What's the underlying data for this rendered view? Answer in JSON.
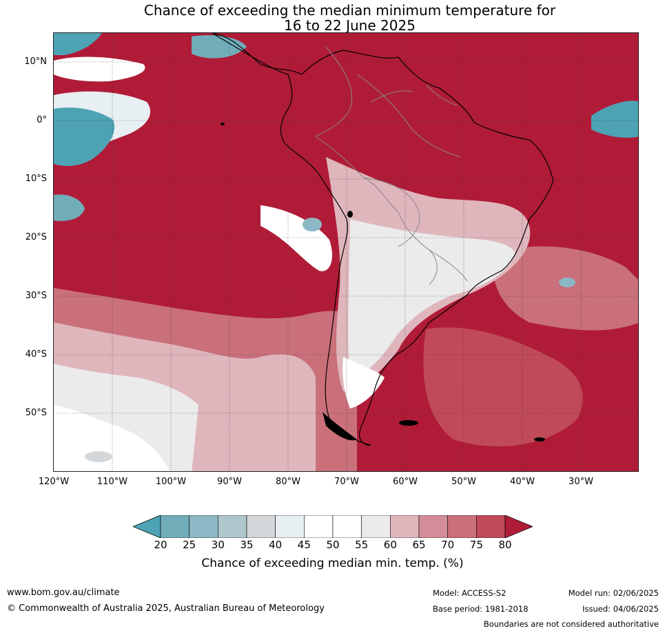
{
  "title": {
    "line1": "Chance of exceeding the median minimum temperature for",
    "line2": "16 to 22 June 2025"
  },
  "map": {
    "lat_labels": [
      "10°N",
      "0°",
      "10°S",
      "20°S",
      "30°S",
      "40°S",
      "50°S"
    ],
    "lon_labels": [
      "120°W",
      "110°W",
      "100°W",
      "90°W",
      "80°W",
      "70°W",
      "60°W",
      "50°W",
      "40°W",
      "30°W"
    ]
  },
  "colorbar": {
    "ticks": [
      "20",
      "25",
      "30",
      "35",
      "40",
      "45",
      "50",
      "55",
      "60",
      "65",
      "70",
      "75",
      "80"
    ],
    "colors": [
      "#4da3b4",
      "#70adb9",
      "#8cb8c5",
      "#aec6cc",
      "#d4d7d9",
      "#e8eff2",
      "#ffffff",
      "#ffffff",
      "#ebebeb",
      "#e0b6bd",
      "#d28d98",
      "#c9707b",
      "#c04a58",
      "#b01c38"
    ],
    "label": "Chance of exceeding median min. temp. (%)"
  },
  "footer": {
    "website": "www.bom.gov.au/climate",
    "copyright": "© Commonwealth of Australia 2025, Australian Bureau of Meteorology",
    "model": "Model: ACCESS-S2",
    "base_period": "Base period: 1981-2018",
    "model_run": "Model run: 02/06/2025",
    "issued": "Issued: 04/06/2025",
    "disclaimer": "Boundaries are not considered authoritative"
  }
}
